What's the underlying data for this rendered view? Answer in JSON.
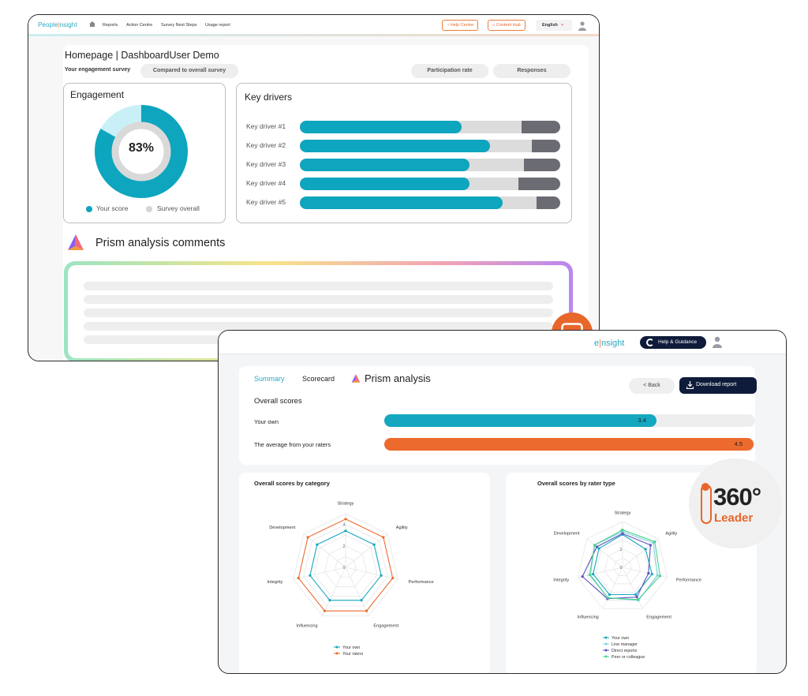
{
  "win1": {
    "logo": {
      "left": "People",
      "sep": "|",
      "right": "nsight"
    },
    "nav": [
      "Reports",
      "Action Centre",
      "Survey Next Steps",
      "Usage report"
    ],
    "help_centre": "Help Centre",
    "content_hub": "Content Hub",
    "language": "English",
    "page_title": "Homepage | DashboardUser Demo",
    "survey_label": "Your engagement survey",
    "compare_btn": "Compared to overall survey",
    "participation_btn": "Participation rate",
    "responses_btn": "Responses",
    "engagement": {
      "title": "Engagement",
      "value_text": "83%",
      "your_score": 0.83,
      "legend_your": "Your score",
      "legend_overall": "Survey overall"
    },
    "key_drivers": {
      "title": "Key drivers",
      "items": [
        {
          "label": "Key driver #1",
          "primary": 0.62,
          "secondary": 0.85
        },
        {
          "label": "Key driver #2",
          "primary": 0.73,
          "secondary": 0.89
        },
        {
          "label": "Key driver #3",
          "primary": 0.65,
          "secondary": 0.86
        },
        {
          "label": "Key driver #4",
          "primary": 0.65,
          "secondary": 0.84
        },
        {
          "label": "Key driver #5",
          "primary": 0.78,
          "secondary": 0.91
        }
      ]
    },
    "prism_title": "Prism analysis comments"
  },
  "win2": {
    "logo": {
      "left": "e",
      "sep": "|",
      "right": "nsight"
    },
    "help_guidance": "Help & Guidance",
    "tabs": {
      "summary": "Summary",
      "scorecard": "Scorecard",
      "prism": "Prism analysis"
    },
    "back": "< Back",
    "download": "Download report",
    "overall_title": "Overall scores",
    "scores": [
      {
        "label": "Your own",
        "value": "3.4",
        "fraction": 0.735,
        "color": "#14a7bf"
      },
      {
        "label": "The average from your raters",
        "value": "4.5",
        "fraction": 0.995,
        "color": "#ed6a2d"
      }
    ],
    "category_title": "Overall scores by category",
    "rater_title": "Overall scores by rater type",
    "badge": {
      "num": "360°",
      "word": "Leader"
    }
  },
  "chart_data": [
    {
      "type": "radar",
      "title": "Overall scores by category",
      "axes": [
        "Strategy",
        "Agility",
        "Performance",
        "Engagement",
        "Influencing",
        "Integrity",
        "Development"
      ],
      "range": [
        0,
        5
      ],
      "ticks": [
        "0",
        "2",
        "4"
      ],
      "series": [
        {
          "name": "Your own",
          "color": "#14a7bf",
          "values": [
            3.4,
            3.4,
            3.4,
            3.4,
            3.4,
            3.4,
            3.4
          ]
        },
        {
          "name": "Your raters",
          "color": "#ed6a2d",
          "values": [
            4.5,
            4.5,
            4.5,
            4.5,
            4.5,
            4.5,
            4.5
          ]
        }
      ]
    },
    {
      "type": "radar",
      "title": "Overall scores by rater type",
      "axes": [
        "Strategy",
        "Agility",
        "Performance",
        "Engagement",
        "Influencing",
        "Integrity",
        "Development"
      ],
      "range": [
        0,
        5
      ],
      "ticks": [
        "0",
        "2",
        "4"
      ],
      "series": [
        {
          "name": "Your own",
          "color": "#14a7bf",
          "values": [
            3.6,
            3.2,
            3.3,
            3.3,
            3.3,
            3.3,
            3.3
          ]
        },
        {
          "name": "Line manager",
          "color": "#7fd3e0",
          "values": [
            3.9,
            4.3,
            3.9,
            4.0,
            3.7,
            3.6,
            3.9
          ]
        },
        {
          "name": "Direct reports",
          "color": "#5b4fbf",
          "values": [
            3.7,
            3.9,
            2.9,
            3.6,
            3.8,
            4.5,
            3.6
          ]
        },
        {
          "name": "Peer or colleague",
          "color": "#49d28a",
          "values": [
            4.1,
            4.5,
            4.2,
            3.9,
            3.7,
            3.7,
            3.9
          ]
        }
      ]
    }
  ]
}
